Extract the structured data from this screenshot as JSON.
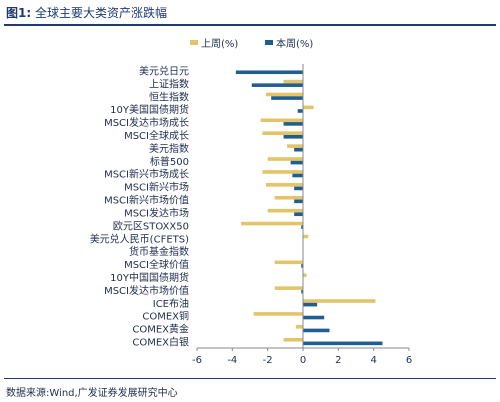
{
  "figure": {
    "label": "图1:",
    "title": "全球主要大类资产涨跌幅",
    "source": "数据来源:Wind,广发证券发展研究中心"
  },
  "colors": {
    "last_week": "#e3c46a",
    "this_week": "#1f5f8f",
    "text": "#1f2d4d",
    "axis": "#888888"
  },
  "chart_data": {
    "type": "bar",
    "orientation": "horizontal",
    "categories": [
      "美元兑日元",
      "上证指数",
      "恒生指数",
      "10Y美国国债期货",
      "MSCI发达市场成长",
      "MSCI全球成长",
      "美元指数",
      "标普500",
      "MSCI新兴市场成长",
      "MSCI新兴市场",
      "MSCI新兴市场价值",
      "MSCI发达市场",
      "欧元区STOXX50",
      "美元兑人民币(CFETS)",
      "货币基金指数",
      "MSCI全球价值",
      "10Y中国国债期货",
      "MSCI发达市场价值",
      "ICE布油",
      "COMEX铜",
      "COMEX黄金",
      "COMEX白银"
    ],
    "series": [
      {
        "name": "上周(%)",
        "values": [
          0.0,
          -1.1,
          -2.1,
          0.6,
          -2.4,
          -2.3,
          -0.9,
          -2.0,
          -2.3,
          -2.1,
          -1.6,
          -2.0,
          -3.5,
          0.3,
          0.0,
          -1.6,
          0.2,
          -1.6,
          4.1,
          -2.8,
          -0.4,
          -1.1
        ]
      },
      {
        "name": "本周(%)",
        "values": [
          -3.8,
          -2.9,
          -1.8,
          -0.3,
          -1.1,
          -1.1,
          -0.5,
          -0.7,
          -0.6,
          -0.5,
          -0.5,
          -0.5,
          -0.1,
          0.0,
          0.0,
          -0.1,
          0.0,
          -0.1,
          0.8,
          1.2,
          1.5,
          4.5
        ]
      }
    ],
    "xlim": [
      -6,
      6
    ],
    "xticks": [
      -6,
      -4,
      -2,
      0,
      2,
      4,
      6
    ],
    "legend_position": "top",
    "grid": false
  }
}
